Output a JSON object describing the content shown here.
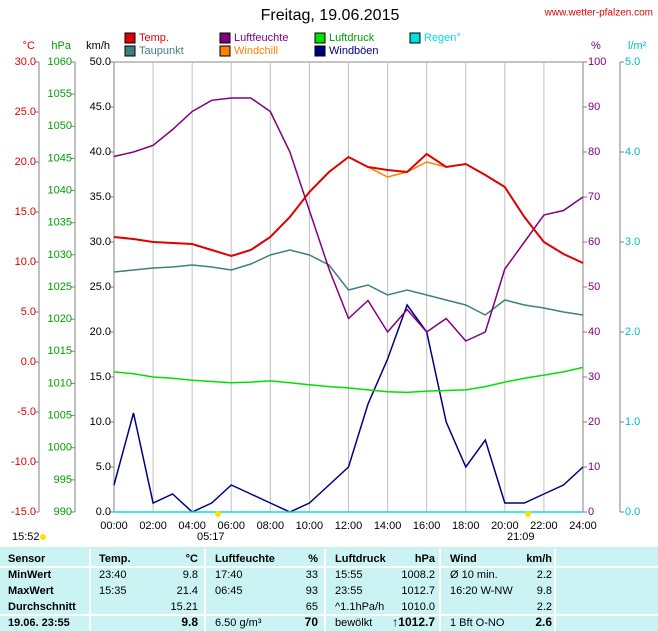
{
  "chart_data": {
    "type": "line",
    "title": "Freitag, 19.06.2015",
    "subtitle": "www.wetter-pfalzen.com",
    "x": [
      0,
      1,
      2,
      3,
      4,
      5,
      6,
      7,
      8,
      9,
      10,
      11,
      12,
      13,
      14,
      15,
      16,
      17,
      18,
      19,
      20,
      21,
      22,
      23,
      24
    ],
    "xlim": [
      0,
      24
    ],
    "xticks": [
      {
        "value": 0,
        "label": "00:00"
      },
      {
        "value": 2,
        "label": "02:00"
      },
      {
        "value": 4,
        "label": "04:00"
      },
      {
        "value": 6,
        "label": "06:00"
      },
      {
        "value": 8,
        "label": "08:00"
      },
      {
        "value": 10,
        "label": "10:00"
      },
      {
        "value": 12,
        "label": "12:00"
      },
      {
        "value": 14,
        "label": "14:00"
      },
      {
        "value": 16,
        "label": "16:00"
      },
      {
        "value": 18,
        "label": "18:00"
      },
      {
        "value": 20,
        "label": "20:00"
      },
      {
        "value": 22,
        "label": "22:00"
      },
      {
        "value": 24,
        "label": "24:00"
      }
    ],
    "grid": true,
    "axes": [
      {
        "name": "°C",
        "side": "left",
        "color": "#e00000",
        "lim": [
          -15,
          30
        ],
        "ticks": [
          {
            "value": -15,
            "label": "-15.0"
          },
          {
            "value": -10,
            "label": "-10.0"
          },
          {
            "value": -5,
            "label": "-5.0"
          },
          {
            "value": 0,
            "label": "0.0"
          },
          {
            "value": 5,
            "label": "5.0"
          },
          {
            "value": 10,
            "label": "10.0"
          },
          {
            "value": 15,
            "label": "15.0"
          },
          {
            "value": 20,
            "label": "20.0"
          },
          {
            "value": 25,
            "label": "25.0"
          },
          {
            "value": 30,
            "label": "30.0"
          }
        ]
      },
      {
        "name": "hPa",
        "side": "left",
        "color": "#00a000",
        "lim": [
          990,
          1060
        ],
        "ticks": [
          990,
          995,
          1000,
          1005,
          1010,
          1015,
          1020,
          1025,
          1030,
          1035,
          1040,
          1045,
          1050,
          1055,
          1060
        ]
      },
      {
        "name": "km/h",
        "side": "left",
        "color": "#000000",
        "lim": [
          0,
          50
        ],
        "ticks": [
          {
            "value": 0,
            "label": "0.0"
          },
          {
            "value": 5,
            "label": "5.0"
          },
          {
            "value": 10,
            "label": "10.0"
          },
          {
            "value": 15,
            "label": "15.0"
          },
          {
            "value": 20,
            "label": "20.0"
          },
          {
            "value": 25,
            "label": "25.0"
          },
          {
            "value": 30,
            "label": "30.0"
          },
          {
            "value": 35,
            "label": "35.0"
          },
          {
            "value": 40,
            "label": "40.0"
          },
          {
            "value": 45,
            "label": "45.0"
          },
          {
            "value": 50,
            "label": "50.0"
          }
        ]
      },
      {
        "name": "%",
        "side": "right",
        "color": "#800080",
        "lim": [
          0,
          100
        ],
        "ticks": [
          0,
          10,
          20,
          30,
          40,
          50,
          60,
          70,
          80,
          90,
          100
        ]
      },
      {
        "name": "l/m²",
        "side": "right",
        "color": "#00c0c0",
        "lim": [
          0,
          5
        ],
        "ticks": [
          {
            "value": 0,
            "label": "0.0"
          },
          {
            "value": 1,
            "label": "1.0"
          },
          {
            "value": 2,
            "label": "2.0"
          },
          {
            "value": 3,
            "label": "3.0"
          },
          {
            "value": 4,
            "label": "4.0"
          },
          {
            "value": 5,
            "label": "5.0"
          }
        ]
      }
    ],
    "series": [
      {
        "name": "Temp.",
        "color": "#e00000",
        "axis": 0,
        "values": [
          12.5,
          12.3,
          12.0,
          11.9,
          11.8,
          11.2,
          10.6,
          11.2,
          12.5,
          14.5,
          17.0,
          19.0,
          20.5,
          19.5,
          19.2,
          19.0,
          20.8,
          19.5,
          19.8,
          18.7,
          17.5,
          14.5,
          12.0,
          10.8,
          9.9
        ]
      },
      {
        "name": "Luftfeuchte",
        "color": "#800080",
        "axis": 3,
        "values": [
          79,
          80,
          81.5,
          85,
          89,
          91.5,
          92,
          92,
          89,
          80,
          67,
          54,
          43,
          47,
          40,
          45,
          40,
          43,
          38,
          40,
          54,
          60,
          66,
          67,
          70
        ]
      },
      {
        "name": "Luftdruck",
        "color": "#00e000",
        "axis": 1,
        "values": [
          1011.8,
          1011.5,
          1011.0,
          1010.8,
          1010.5,
          1010.3,
          1010.1,
          1010.2,
          1010.4,
          1010.1,
          1009.8,
          1009.5,
          1009.3,
          1009.0,
          1008.7,
          1008.6,
          1008.8,
          1008.9,
          1009.0,
          1009.5,
          1010.2,
          1010.8,
          1011.3,
          1011.8,
          1012.5
        ]
      },
      {
        "name": "Regen°",
        "color": "#00e0e0",
        "axis": 4,
        "values": [
          0,
          0,
          0,
          0,
          0,
          0,
          0,
          0,
          0,
          0,
          0,
          0,
          0,
          0,
          0,
          0,
          0,
          0,
          0,
          0,
          0,
          0,
          0,
          0,
          0
        ]
      },
      {
        "name": "Taupunkt",
        "color": "#408080",
        "axis": 0,
        "values": [
          9.0,
          9.2,
          9.4,
          9.5,
          9.7,
          9.5,
          9.2,
          9.8,
          10.7,
          11.2,
          10.7,
          9.7,
          7.2,
          7.7,
          6.7,
          7.2,
          6.7,
          6.2,
          5.7,
          4.7,
          6.2,
          5.7,
          5.4,
          5.0,
          4.7
        ]
      },
      {
        "name": "Windchill",
        "color": "#ff8000",
        "axis": 0,
        "values": [
          12.5,
          12.3,
          12.0,
          11.9,
          11.8,
          11.2,
          10.6,
          11.2,
          12.5,
          14.5,
          17.0,
          19.0,
          20.5,
          19.5,
          18.5,
          19.0,
          20.0,
          19.5,
          19.8,
          18.7,
          17.5,
          14.5,
          12.0,
          10.8,
          9.9
        ]
      },
      {
        "name": "Windböen",
        "color": "#000080",
        "axis": 2,
        "values": [
          3,
          11,
          1,
          2,
          0,
          1,
          3,
          2,
          1,
          0,
          1,
          3,
          5,
          12,
          17,
          23,
          20,
          10,
          5,
          8,
          1,
          1,
          2,
          3,
          5
        ]
      }
    ],
    "annotations": [
      "15:52",
      "05:17",
      "21:09"
    ],
    "table": {
      "header": [
        "Sensor",
        "Temp.",
        "°C",
        "Luftfeuchte",
        "%",
        "Luftdruck",
        "hPa",
        "Wind",
        "km/h"
      ],
      "rows": [
        [
          "MinWert",
          "23:40",
          "9.8",
          "17:40",
          "33",
          "15:55",
          "1008.2",
          "Ø 10 min.",
          "2.2"
        ],
        [
          "MaxWert",
          "15:35",
          "21.4",
          "06:45",
          "93",
          "23:55",
          "1012.7",
          "16:20  W-NW",
          "9.8"
        ],
        [
          "Durchschnitt",
          "",
          "15.21",
          "",
          "65",
          "^1.1hPa/h",
          "1010.0",
          "",
          "2.2"
        ],
        [
          "19.06. 23:55",
          "",
          "9.8",
          "6.50 g/m³",
          "70",
          "bewölkt",
          "↑1012.7",
          "1 Bft O-NO",
          "2.6"
        ]
      ]
    }
  }
}
